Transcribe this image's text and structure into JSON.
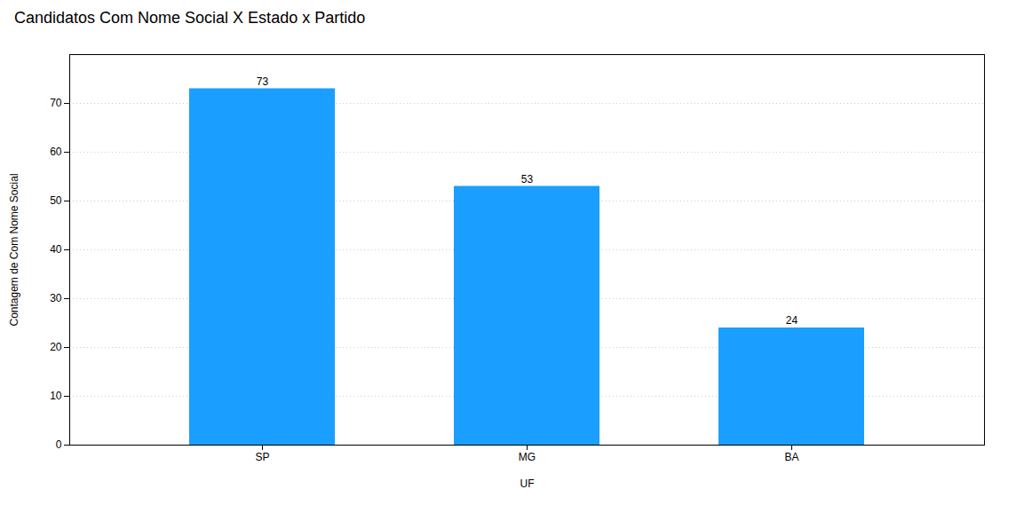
{
  "chart_data": {
    "type": "bar",
    "title": "Candidatos Com Nome Social X Estado x Partido",
    "categories": [
      "SP",
      "MG",
      "BA"
    ],
    "values": [
      73,
      53,
      24
    ],
    "color": "#1a9eff",
    "xlabel": "UF",
    "ylabel": "Contagem de Com Nome Social",
    "ylim": [
      0,
      80
    ],
    "yticks": [
      0,
      10,
      20,
      30,
      40,
      50,
      60,
      70
    ],
    "grid": true,
    "data_labels": true
  }
}
